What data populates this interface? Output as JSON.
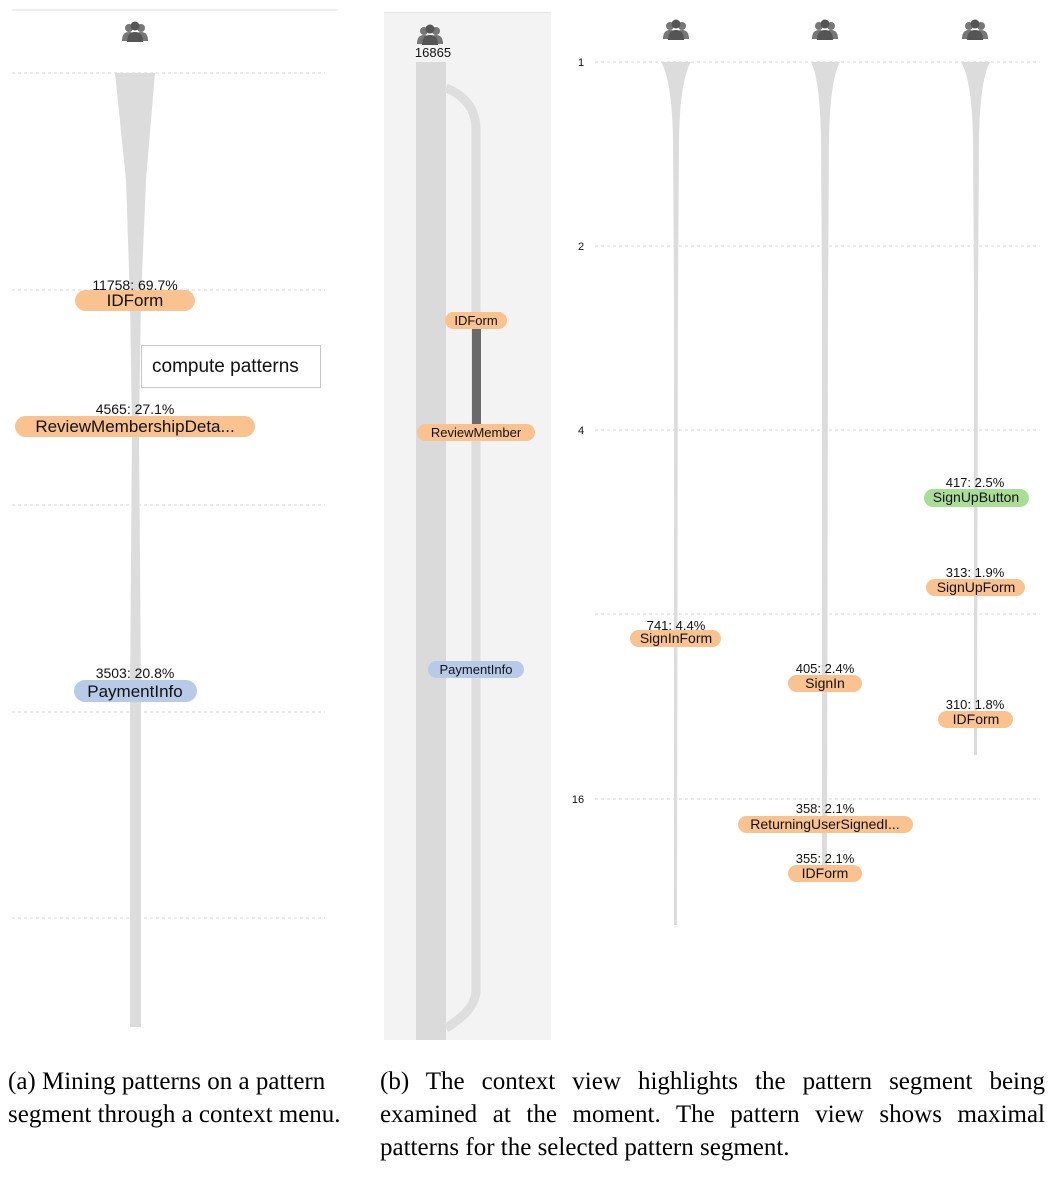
{
  "panel_a": {
    "nodes": [
      {
        "count_label": "11758: 69.7%",
        "label": "IDForm",
        "color": "#f9c28e"
      },
      {
        "count_label": "4565: 27.1%",
        "label": "ReviewMembershipDeta...",
        "color": "#f9c28e"
      },
      {
        "count_label": "3503: 20.8%",
        "label": "PaymentInfo",
        "color": "#b7cbe9"
      }
    ],
    "context_menu": {
      "item": "compute patterns"
    }
  },
  "context_view": {
    "total": "16865",
    "nodes": [
      {
        "label": "IDForm",
        "color": "#f9c28e"
      },
      {
        "label": "ReviewMember",
        "color": "#f9c28e"
      },
      {
        "label": "PaymentInfo",
        "color": "#b7cbe9"
      }
    ]
  },
  "pattern_view": {
    "axis_ticks": [
      "1",
      "2",
      "4",
      "16"
    ],
    "columns": [
      {
        "nodes": [
          {
            "count_label": "741: 4.4%",
            "label": "SignInForm",
            "color": "#f9c28e"
          }
        ]
      },
      {
        "nodes": [
          {
            "count_label": "405: 2.4%",
            "label": "SignIn",
            "color": "#f9c28e"
          },
          {
            "count_label": "358: 2.1%",
            "label": "ReturningUserSignedI...",
            "color": "#f9c28e"
          },
          {
            "count_label": "355: 2.1%",
            "label": "IDForm",
            "color": "#f9c28e"
          }
        ]
      },
      {
        "nodes": [
          {
            "count_label": "417: 2.5%",
            "label": "SignUpButton",
            "color": "#a8de95"
          },
          {
            "count_label": "313: 1.9%",
            "label": "SignUpForm",
            "color": "#f9c28e"
          },
          {
            "count_label": "310: 1.8%",
            "label": "IDForm",
            "color": "#f9c28e"
          }
        ]
      }
    ]
  },
  "captions": {
    "a": "(a) Mining patterns on a pattern segment through a context menu.",
    "b": "(b) The context view highlights the pattern segment being examined at the moment. The pattern view shows maximal patterns for the selected pattern segment."
  },
  "icons": [
    "users-icon"
  ]
}
